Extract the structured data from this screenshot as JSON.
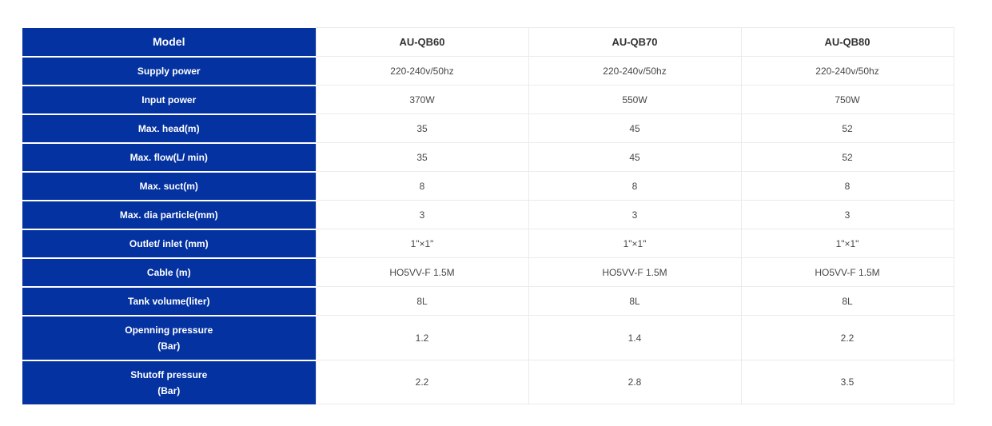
{
  "table": {
    "header_label": "Model",
    "models": [
      "AU-QB60",
      "AU-QB70",
      "AU-QB80"
    ],
    "rows": [
      {
        "label": "Supply power",
        "values": [
          "220-240v/50hz",
          "220-240v/50hz",
          "220-240v/50hz"
        ]
      },
      {
        "label": "Input power",
        "values": [
          "370W",
          "550W",
          "750W"
        ]
      },
      {
        "label": "Max. head(m)",
        "values": [
          "35",
          "45",
          "52"
        ]
      },
      {
        "label": "Max. flow(L/ min)",
        "values": [
          "35",
          "45",
          "52"
        ]
      },
      {
        "label": "Max. suct(m)",
        "values": [
          "8",
          "8",
          "8"
        ]
      },
      {
        "label": "Max. dia particle(mm)",
        "values": [
          "3",
          "3",
          "3"
        ]
      },
      {
        "label": "Outlet/ inlet (mm)",
        "values": [
          "1\"×1\"",
          "1\"×1\"",
          "1\"×1\""
        ]
      },
      {
        "label": "Cable (m)",
        "values": [
          "HO5VV-F 1.5M",
          "HO5VV-F 1.5M",
          "HO5VV-F 1.5M"
        ]
      },
      {
        "label": "Tank volume(liter)",
        "values": [
          "8L",
          "8L",
          "8L"
        ]
      },
      {
        "label": "Openning pressure",
        "label_line2": "(Bar)",
        "values": [
          "1.2",
          "1.4",
          "2.2"
        ]
      },
      {
        "label": "Shutoff pressure",
        "label_line2": "(Bar)",
        "values": [
          "2.2",
          "2.8",
          "3.5"
        ]
      }
    ],
    "colors": {
      "label_background": "#0432A0",
      "label_text": "#ffffff",
      "cell_border": "#ebebeb",
      "cell_text": "#474747",
      "model_header_text": "#333333"
    }
  }
}
